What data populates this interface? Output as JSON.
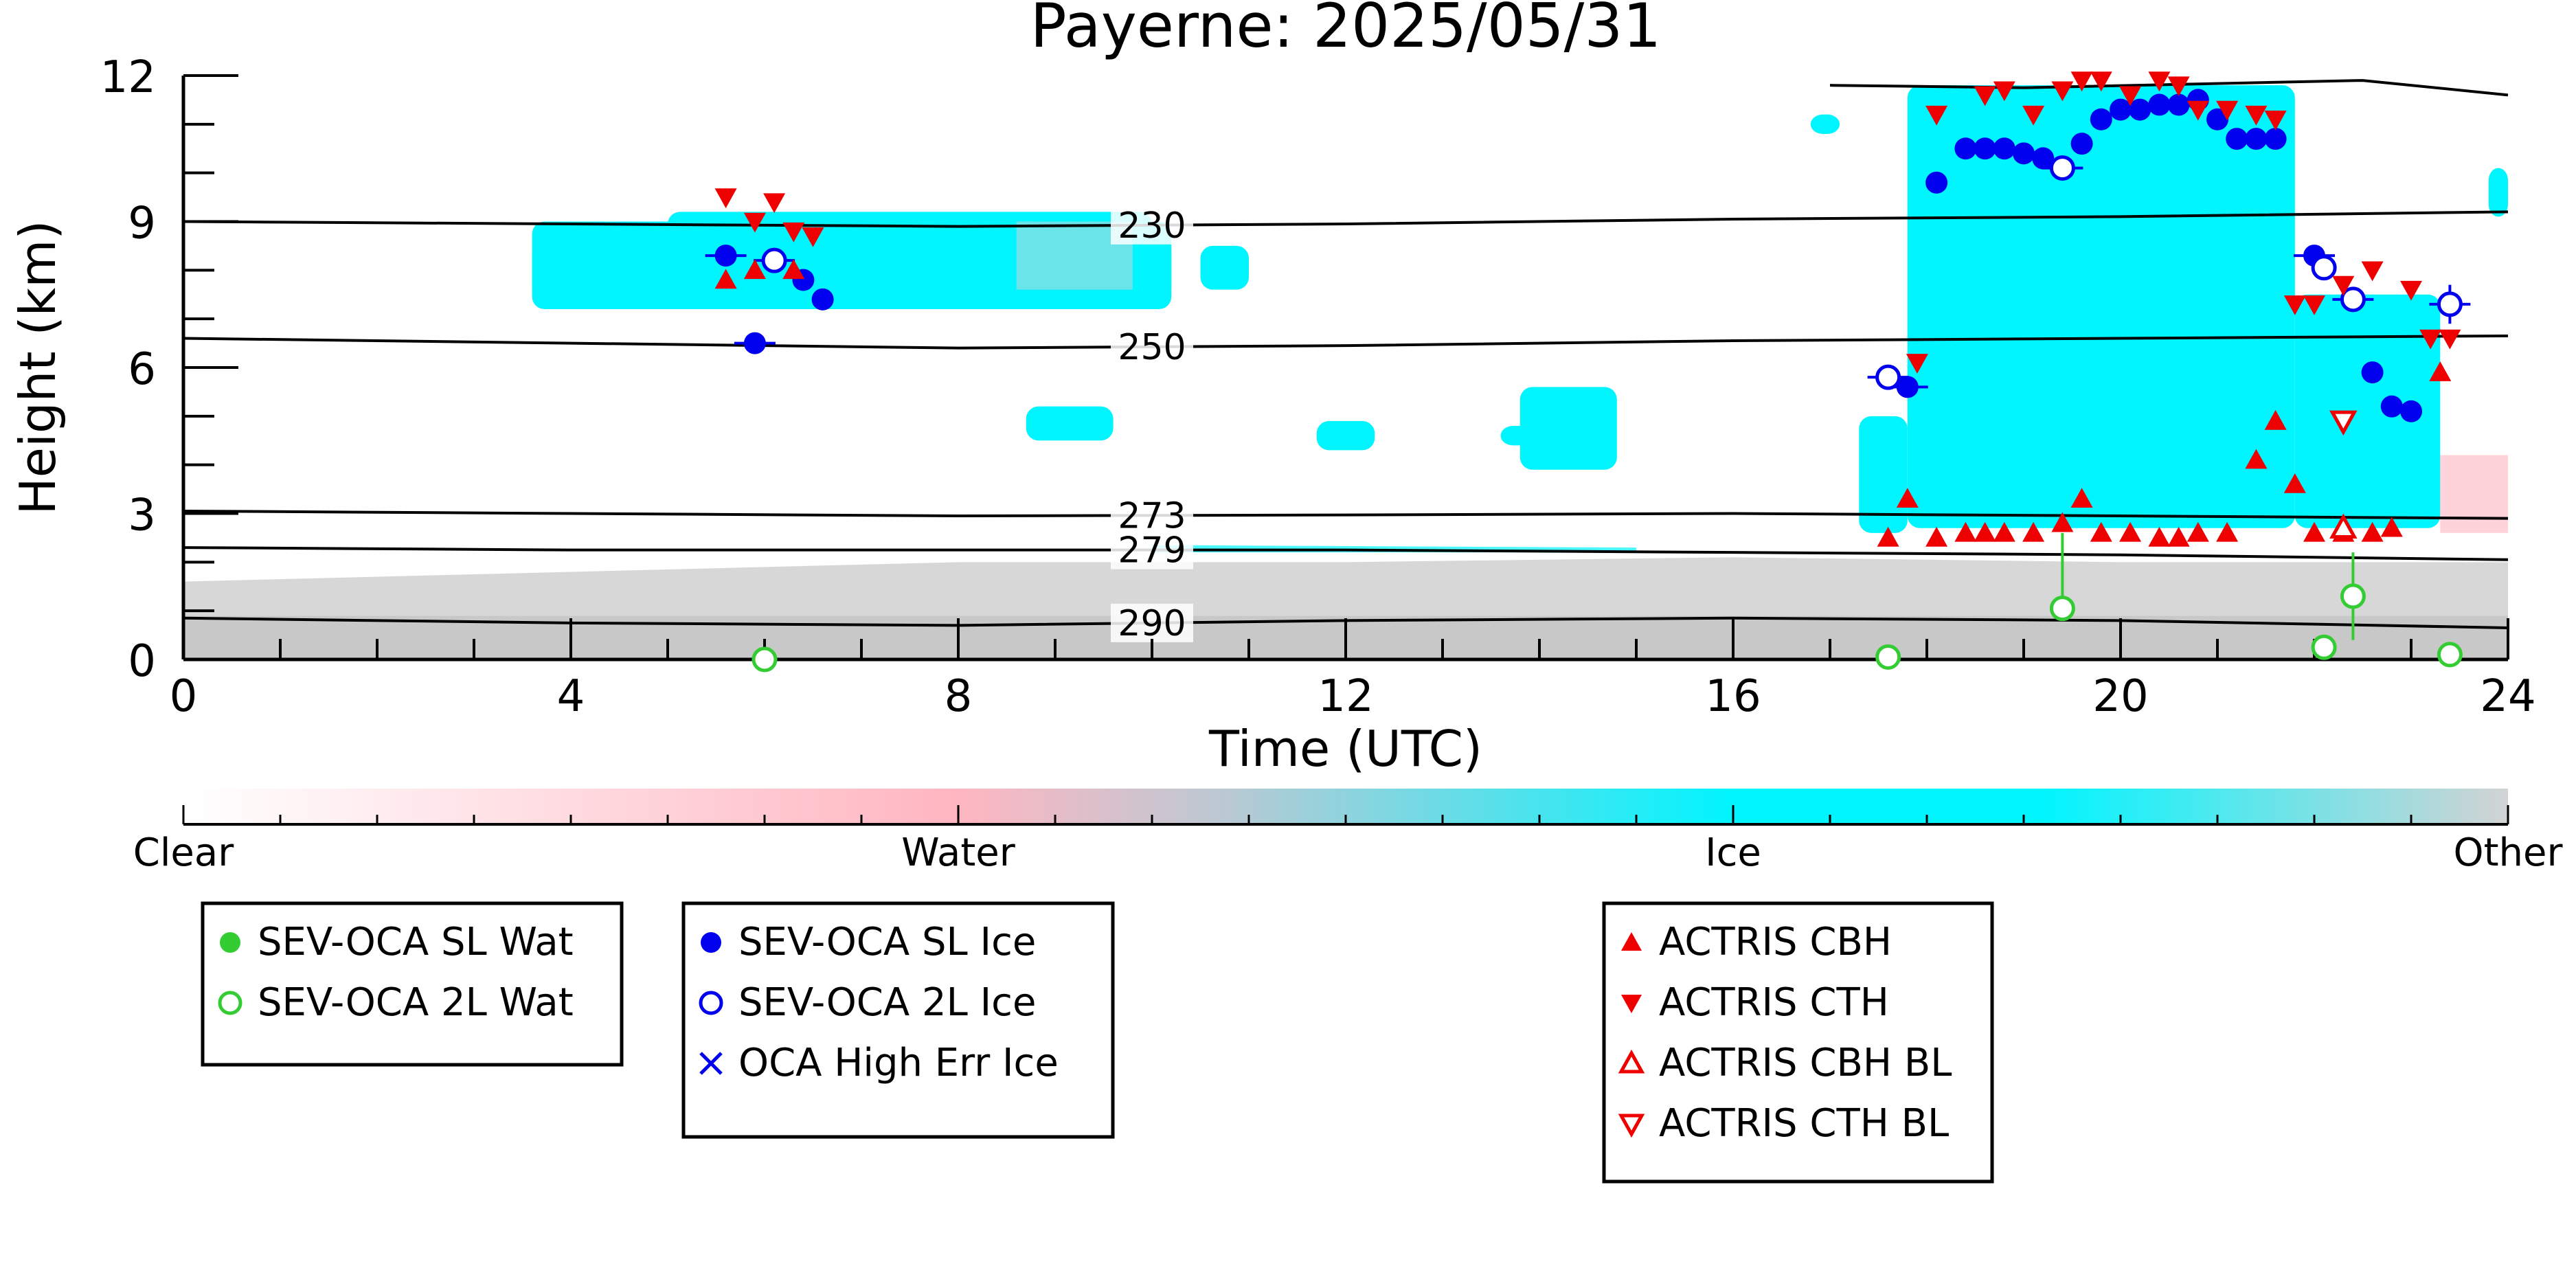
{
  "chart_data": {
    "type": "scatter",
    "title": "Payerne: 2025/05/31",
    "xlabel": "Time (UTC)",
    "ylabel": "Height (km)",
    "xlim": [
      0,
      24
    ],
    "ylim": [
      0,
      12
    ],
    "xticks": [
      "0",
      "4",
      "8",
      "12",
      "16",
      "20",
      "24"
    ],
    "yticks": [
      "0",
      "3",
      "6",
      "9",
      "12"
    ],
    "grid": false,
    "background": "cloud phase mask (Clear / Water / Ice / Other)",
    "isotherms": [
      {
        "label": "230",
        "x": [
          0,
          4,
          8,
          12,
          16,
          20,
          24
        ],
        "y": [
          9.0,
          8.95,
          8.9,
          8.95,
          9.05,
          9.1,
          9.2
        ]
      },
      {
        "label": "250",
        "x": [
          0,
          4,
          8,
          12,
          16,
          20,
          24
        ],
        "y": [
          6.6,
          6.5,
          6.4,
          6.45,
          6.55,
          6.6,
          6.65
        ]
      },
      {
        "label": "273",
        "x": [
          0,
          4,
          8,
          12,
          16,
          20,
          24
        ],
        "y": [
          3.05,
          3.0,
          2.95,
          2.97,
          3.0,
          2.95,
          2.9
        ]
      },
      {
        "label": "279",
        "x": [
          0,
          4,
          8,
          12,
          16,
          20,
          24
        ],
        "y": [
          2.3,
          2.25,
          2.25,
          2.25,
          2.2,
          2.15,
          2.05
        ]
      },
      {
        "label": "290",
        "x": [
          0,
          4,
          8,
          12,
          16,
          20,
          24
        ],
        "y": [
          0.85,
          0.75,
          0.7,
          0.8,
          0.85,
          0.8,
          0.65
        ]
      }
    ],
    "colorbar": {
      "labels": [
        "Clear",
        "Water",
        "Ice",
        "Other"
      ],
      "colors": [
        "#ffffff",
        "#ffb6c1",
        "#00f5ff",
        "#d3d3d3"
      ]
    },
    "series": [
      {
        "name": "SEV-OCA SL Wat",
        "marker": "filled-circle",
        "color": "#33cc33",
        "x": [],
        "y": []
      },
      {
        "name": "SEV-OCA 2L Wat",
        "marker": "open-circle",
        "color": "#33cc33",
        "x": [
          6.0,
          17.6,
          19.4,
          22.1,
          22.4,
          23.4
        ],
        "y": [
          0.0,
          0.05,
          1.05,
          0.25,
          1.3,
          0.1
        ]
      },
      {
        "name": "SEV-OCA SL Ice",
        "marker": "filled-circle",
        "color": "#0000ee",
        "x": [
          5.6,
          5.9,
          6.4,
          6.6,
          17.8,
          18.1,
          18.4,
          18.6,
          18.8,
          19.0,
          19.2,
          19.6,
          19.8,
          20.0,
          20.2,
          20.4,
          20.6,
          20.8,
          21.0,
          21.2,
          21.4,
          21.6,
          22.0,
          22.6,
          22.8,
          23.0
        ],
        "y": [
          8.3,
          6.5,
          7.8,
          7.4,
          5.6,
          9.8,
          10.5,
          10.5,
          10.5,
          10.4,
          10.3,
          10.6,
          11.1,
          11.3,
          11.3,
          11.4,
          11.4,
          11.5,
          11.1,
          10.7,
          10.7,
          10.7,
          8.3,
          5.9,
          5.2,
          5.1
        ]
      },
      {
        "name": "SEV-OCA 2L Ice",
        "marker": "open-circle",
        "color": "#0000ee",
        "x": [
          6.1,
          17.6,
          19.4,
          22.1,
          22.4,
          23.4
        ],
        "y": [
          8.2,
          5.8,
          10.1,
          8.05,
          7.4,
          7.3
        ]
      },
      {
        "name": "OCA High Err Ice",
        "marker": "x",
        "color": "#0000ee",
        "x": [],
        "y": []
      },
      {
        "name": "ACTRIS CBH",
        "marker": "triangle-up-filled",
        "color": "#ee0000",
        "x": [
          5.6,
          5.9,
          6.3,
          17.6,
          17.8,
          18.1,
          18.4,
          18.6,
          18.8,
          19.1,
          19.4,
          19.6,
          19.8,
          20.1,
          20.4,
          20.6,
          20.8,
          21.1,
          21.4,
          21.6,
          21.8,
          22.0,
          22.3,
          22.6,
          22.8,
          23.3
        ],
        "y": [
          7.8,
          8.0,
          8.0,
          2.5,
          3.3,
          2.5,
          2.6,
          2.6,
          2.6,
          2.6,
          2.8,
          3.3,
          2.6,
          2.6,
          2.5,
          2.5,
          2.6,
          2.6,
          4.1,
          4.9,
          3.6,
          2.6,
          2.6,
          2.6,
          2.7,
          5.9
        ]
      },
      {
        "name": "ACTRIS CTH",
        "marker": "triangle-down-filled",
        "color": "#ee0000",
        "x": [
          5.6,
          5.9,
          6.1,
          6.3,
          6.5,
          17.9,
          18.1,
          18.6,
          18.8,
          19.1,
          19.4,
          19.6,
          19.8,
          20.1,
          20.4,
          20.6,
          20.8,
          21.1,
          21.4,
          21.6,
          21.8,
          22.0,
          22.3,
          22.6,
          23.0,
          23.2,
          23.4
        ],
        "y": [
          9.5,
          9.0,
          9.4,
          8.8,
          8.7,
          6.1,
          11.2,
          11.6,
          11.7,
          11.2,
          11.7,
          11.9,
          11.9,
          11.6,
          11.9,
          11.8,
          11.3,
          11.3,
          11.2,
          11.1,
          7.3,
          7.3,
          7.7,
          8.0,
          7.6,
          6.6,
          6.6
        ]
      },
      {
        "name": "ACTRIS CBH BL",
        "marker": "triangle-up-open",
        "color": "#ee0000",
        "x": [
          22.3
        ],
        "y": [
          2.7
        ]
      },
      {
        "name": "ACTRIS CTH BL",
        "marker": "triangle-down-open",
        "color": "#ee0000",
        "x": [
          22.3
        ],
        "y": [
          4.9
        ]
      }
    ],
    "legend": {
      "position": "bottom",
      "groups": [
        [
          "SEV-OCA SL Wat",
          "SEV-OCA 2L Wat"
        ],
        [
          "SEV-OCA SL Ice",
          "SEV-OCA 2L Ice",
          "OCA High Err Ice"
        ],
        [
          "ACTRIS CBH",
          "ACTRIS CTH",
          "ACTRIS CBH BL",
          "ACTRIS CTH BL"
        ]
      ]
    }
  }
}
